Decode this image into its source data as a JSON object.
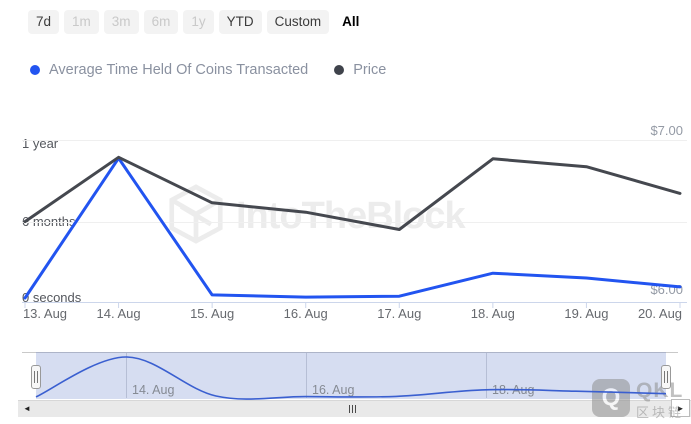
{
  "toolbar": {
    "buttons": [
      {
        "label": "7d",
        "state": "default"
      },
      {
        "label": "1m",
        "state": "disabled"
      },
      {
        "label": "3m",
        "state": "disabled"
      },
      {
        "label": "6m",
        "state": "disabled"
      },
      {
        "label": "1y",
        "state": "disabled"
      },
      {
        "label": "YTD",
        "state": "default"
      },
      {
        "label": "Custom",
        "state": "default"
      },
      {
        "label": "All",
        "state": "selected"
      }
    ]
  },
  "legend": {
    "items": [
      {
        "label": "Average Time Held Of Coins Transacted",
        "color": "#2254f0"
      },
      {
        "label": "Price",
        "color": "#3f434b"
      }
    ]
  },
  "chart_data": {
    "type": "line",
    "x": [
      "13. Aug",
      "14. Aug",
      "15. Aug",
      "16. Aug",
      "17. Aug",
      "18. Aug",
      "19. Aug",
      "20. Aug"
    ],
    "series": [
      {
        "name": "Average Time Held Of Coins Transacted",
        "color": "#2254f0",
        "unit": "days",
        "values": [
          9,
          324,
          16,
          11,
          13,
          65,
          54,
          34
        ]
      },
      {
        "name": "Price",
        "color": "#45484f",
        "unit": "USD",
        "values": [
          6.48,
          6.89,
          6.6,
          6.54,
          6.43,
          6.88,
          6.83,
          6.66
        ]
      }
    ],
    "y_axis_left": {
      "tick_labels": [
        "1 year",
        "6 months",
        "0 seconds"
      ],
      "range_days": [
        0,
        365
      ]
    },
    "y_axis_right": {
      "tick_labels": [
        "$7.00",
        "$6.00"
      ],
      "range_usd": [
        6.0,
        7.0
      ]
    },
    "grid": "horizontal",
    "legend_position": "top",
    "navigator_labels": [
      "14. Aug",
      "16. Aug",
      "18. Aug"
    ]
  },
  "watermark": {
    "text": "IntoTheBlock"
  },
  "corner_watermark": {
    "logo_letter": "Q",
    "line1": "QKL",
    "line2": "区块链"
  },
  "icons": {
    "left_arrow": "◄",
    "right_arrow": "►"
  }
}
